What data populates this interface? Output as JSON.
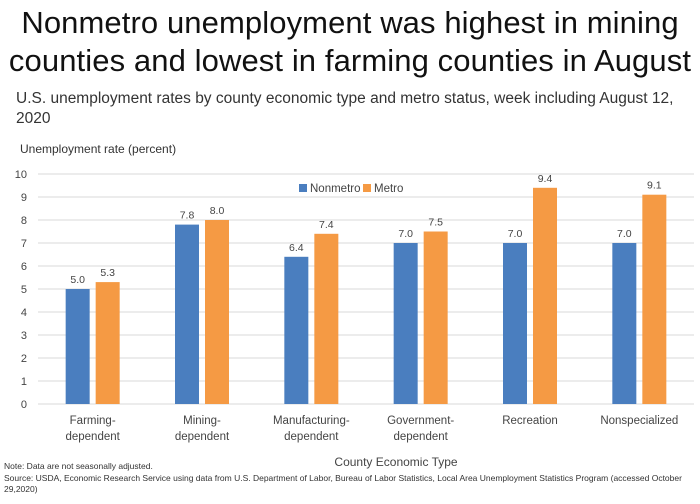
{
  "title_line1": "Nonmetro unemployment was highest in mining",
  "title_line2": "counties and lowest in farming counties in August",
  "subtitle": "U.S. unemployment rates by county economic type and metro status, week including August 12, 2020",
  "note": "Note: Data are not seasonally adjusted.",
  "source": "Source: USDA, Economic Research Service using data from U.S. Department of Labor, Bureau of Labor Statistics, Local Area Unemployment Statistics Program (accessed October 29,2020)",
  "chart_data": {
    "type": "bar",
    "ylabel": "Unemployment rate (percent)",
    "xlabel": "County Economic Type",
    "ylim": [
      0,
      10
    ],
    "yticks": [
      0,
      1,
      2,
      3,
      4,
      5,
      6,
      7,
      8,
      9,
      10
    ],
    "grid": true,
    "legend_position": "top-center",
    "categories": [
      [
        "Farming-",
        "dependent"
      ],
      [
        "Mining-",
        "dependent"
      ],
      [
        "Manufacturing-",
        "dependent"
      ],
      [
        "Government-",
        "dependent"
      ],
      [
        "Recreation"
      ],
      [
        "Nonspecialized"
      ]
    ],
    "series": [
      {
        "name": "Nonmetro",
        "color": "#4a7ebf",
        "values": [
          5.0,
          7.8,
          6.4,
          7.0,
          7.0,
          7.0
        ]
      },
      {
        "name": "Metro",
        "color": "#f59a44",
        "values": [
          5.3,
          8.0,
          7.4,
          7.5,
          9.4,
          9.1
        ]
      }
    ]
  }
}
